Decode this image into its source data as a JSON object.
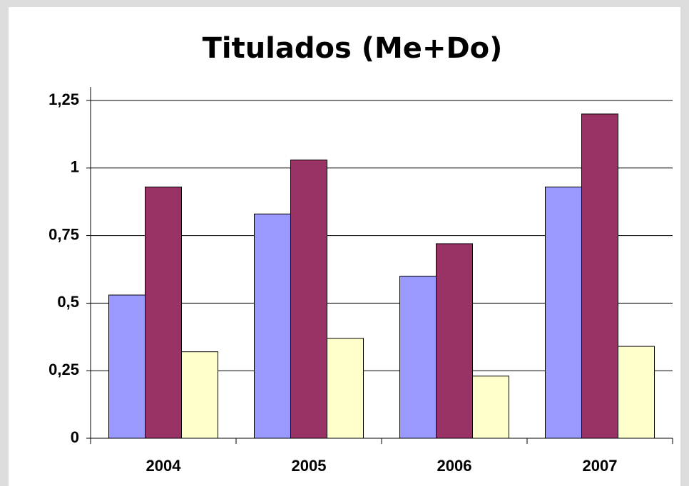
{
  "chart_data": {
    "type": "bar",
    "title": "Titulados (Me+Do)",
    "categories": [
      "2004",
      "2005",
      "2006",
      "2007"
    ],
    "series": [
      {
        "color": "#9999ff",
        "values": [
          0.53,
          0.83,
          0.6,
          0.93
        ]
      },
      {
        "color": "#993366",
        "values": [
          0.93,
          1.03,
          0.72,
          1.2
        ]
      },
      {
        "color": "#ffffcc",
        "values": [
          0.32,
          0.37,
          0.23,
          0.34
        ]
      }
    ],
    "ylim": [
      0,
      1.25
    ],
    "yticks": [
      0,
      {
        "value": 0.25,
        "label": "0,25"
      },
      {
        "value": 0.5,
        "label": "0,5"
      },
      {
        "value": 0.75,
        "label": "0,75"
      },
      1,
      {
        "value": 1.25,
        "label": "1,25"
      }
    ],
    "grid": true
  }
}
